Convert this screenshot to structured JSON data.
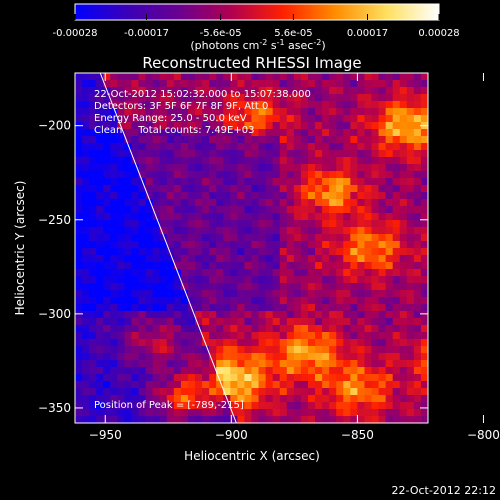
{
  "colorbar": {
    "tick_labels": [
      "-0.00028",
      "-0.00017",
      "-5.6e-05",
      "5.6e-05",
      "0.00017",
      "0.00028"
    ],
    "units_main": "(photons cm",
    "units_sup1": "-2",
    "units_mid": " s",
    "units_sup2": "-1",
    "units_mid2": " asec",
    "units_sup3": "-2",
    "units_end": ")",
    "stops": [
      "#0000ff",
      "#3a00b8",
      "#6a0090",
      "#b00050",
      "#ff2000",
      "#ff8c00",
      "#ffe060",
      "#ffffff"
    ]
  },
  "chart_data": {
    "type": "heatmap",
    "title": "Reconstructed RHESSI Image",
    "xlabel": "Heliocentric X (arcsec)",
    "ylabel": "Heliocentric Y (arcsec)",
    "xlim": [
      -962,
      -822
    ],
    "ylim": [
      -358,
      -172
    ],
    "xticks": [
      -950,
      -900,
      -850,
      -800
    ],
    "yticks": [
      -200,
      -250,
      -300,
      -350
    ],
    "xtick_labels": [
      "−950",
      "−900",
      "−850",
      "−800"
    ],
    "ytick_labels": [
      "−200",
      "−250",
      "−300",
      "−350"
    ],
    "value_range": [
      -0.00028,
      0.00028
    ],
    "peak_position": [
      -789,
      -215
    ],
    "limb_line": [
      [
        -952,
        -172
      ],
      [
        -898,
        -358
      ]
    ],
    "annotations": [
      "22-Oct-2012 15:02:32.000 to 15:07:38.000",
      "Detectors: 3F 5F 6F 7F 8F 9F, Att 0",
      "Energy Range: 25.0 - 50.0 keV",
      "Clean     Total counts: 7.49E+03"
    ],
    "peak_label": "Position of Peak = [-789,-215]"
  },
  "footer": {
    "timestamp": "22-Oct-2012 22:12"
  }
}
